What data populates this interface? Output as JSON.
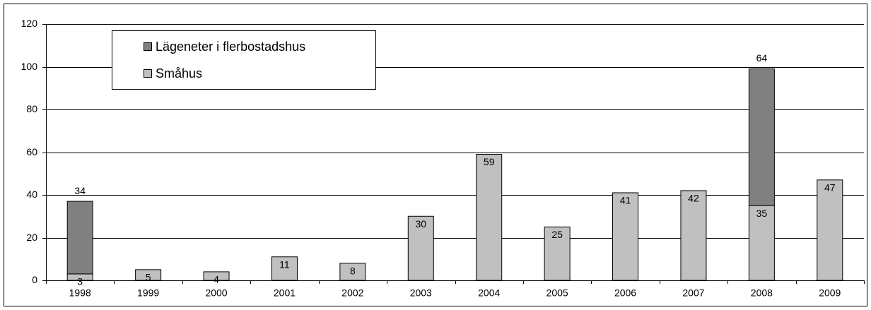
{
  "chart_data": {
    "type": "stacked-bar",
    "categories": [
      "1998",
      "1999",
      "2000",
      "2001",
      "2002",
      "2003",
      "2004",
      "2005",
      "2006",
      "2007",
      "2008",
      "2009"
    ],
    "series": [
      {
        "name": "Lägeneter i flerbostadshus",
        "color": "#808080",
        "values": [
          34,
          null,
          null,
          null,
          null,
          null,
          null,
          null,
          null,
          null,
          64,
          null
        ]
      },
      {
        "name": "Småhus",
        "color": "#c0c0c0",
        "values": [
          3,
          5,
          4,
          11,
          8,
          30,
          59,
          25,
          41,
          42,
          35,
          47
        ]
      }
    ],
    "ylim": [
      0,
      120
    ],
    "yticks": [
      0,
      20,
      40,
      60,
      80,
      100,
      120
    ],
    "grid": true,
    "legend": "top-left"
  }
}
